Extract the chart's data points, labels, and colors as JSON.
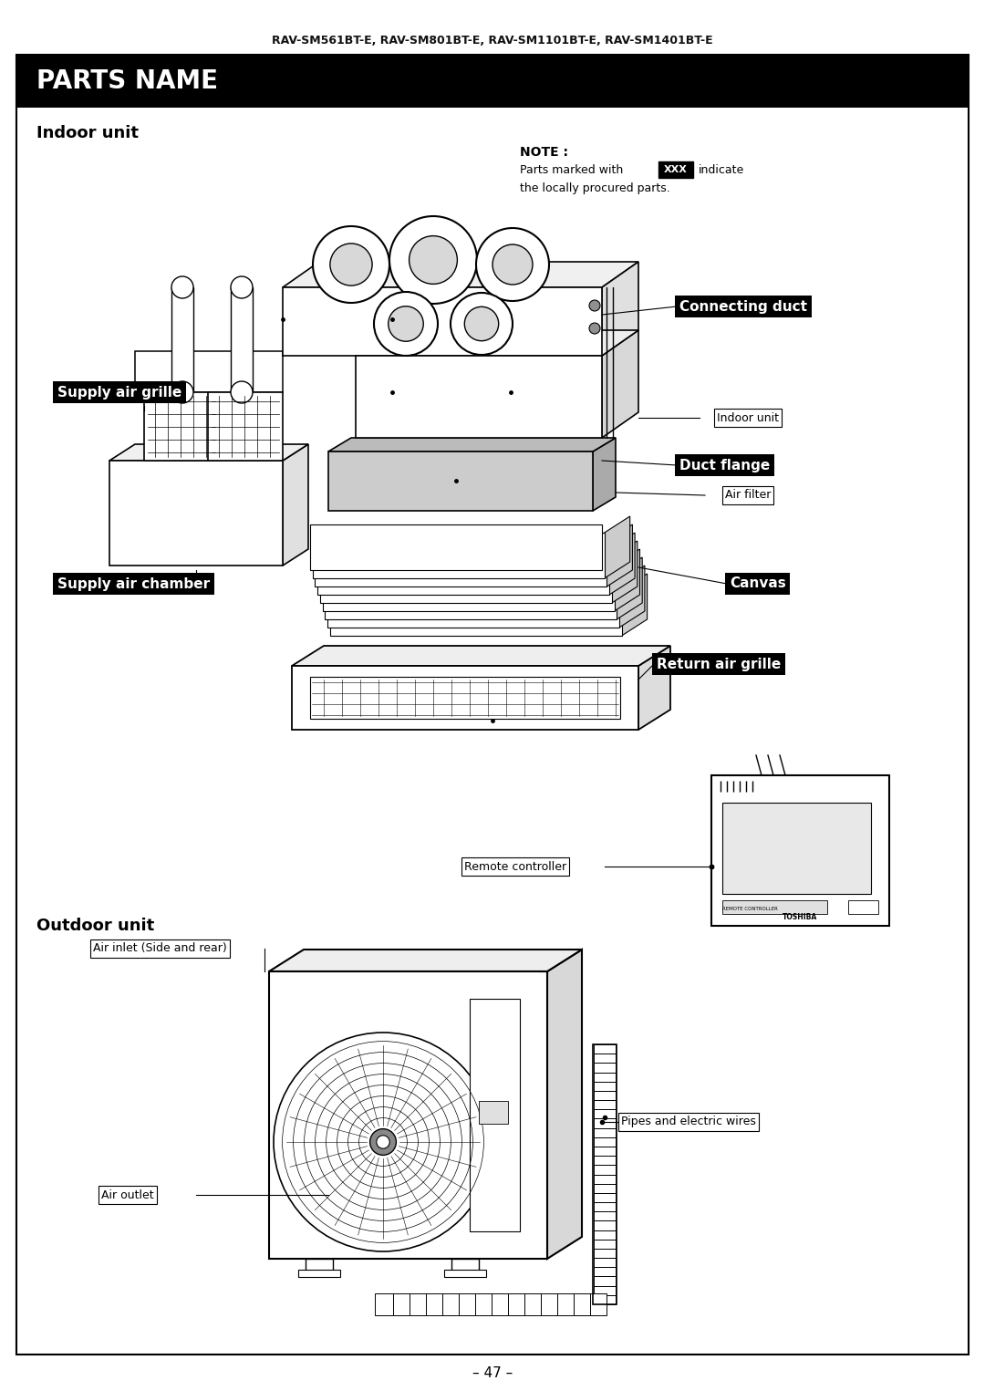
{
  "page_title": "RAV-SM561BT-E, RAV-SM801BT-E, RAV-SM1101BT-E, RAV-SM1401BT-E",
  "section_title": "PARTS NAME",
  "indoor_unit_label": "Indoor unit",
  "outdoor_unit_label": "Outdoor unit",
  "note_title": "NOTE :",
  "note_text": "Parts marked with",
  "note_xxx": "XXX",
  "note_text2_line1": "indicate",
  "note_text2_line2": "the locally procured parts.",
  "page_number": "– 47 –",
  "bg_color": "#ffffff",
  "header_bg": "#000000",
  "header_text_color": "#ffffff"
}
